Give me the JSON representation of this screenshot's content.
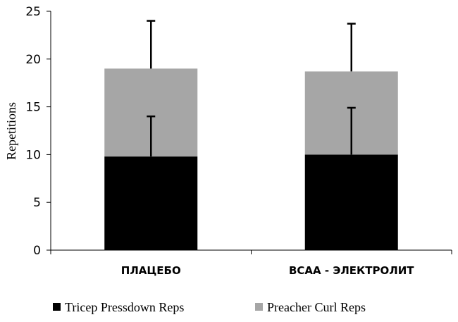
{
  "chart_data": {
    "type": "bar",
    "stacked": true,
    "categories": [
      "ПЛАЦЕБО",
      "BCAA - ЭЛЕКТРОЛИТ"
    ],
    "series": [
      {
        "name": "Tricep Pressdown Reps",
        "values": [
          9.8,
          10.0
        ],
        "error": [
          4.2,
          4.9
        ],
        "color": "#000000"
      },
      {
        "name": "Preacher Curl Reps",
        "values": [
          9.2,
          8.7
        ],
        "error": [
          5.0,
          5.0
        ],
        "color": "#a6a6a6"
      }
    ],
    "xlabel": "",
    "ylabel": "Repetitions",
    "ylim": [
      0,
      25
    ],
    "yticks": [
      0,
      5,
      10,
      15,
      20,
      25
    ],
    "grid": false,
    "legend_position": "bottom"
  }
}
